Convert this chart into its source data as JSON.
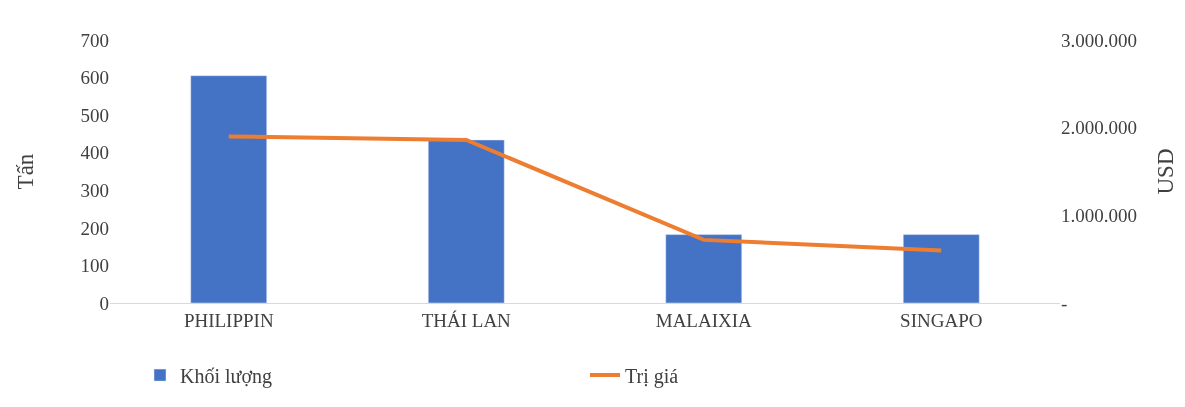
{
  "chart_data": {
    "type": "bar",
    "categories": [
      "PHILIPPIN",
      "THÁI LAN",
      "MALAIXIA",
      "SINGAPO"
    ],
    "ylabel": "Tấn",
    "y2label": "USD",
    "ylim": [
      0,
      700
    ],
    "yticks": [
      0,
      100,
      200,
      300,
      400,
      500,
      600,
      700
    ],
    "y2lim": [
      0,
      3000000
    ],
    "y2ticks": [
      {
        "value": 0,
        "label": "-"
      },
      {
        "value": 1000000,
        "label": "1.000.000"
      },
      {
        "value": 2000000,
        "label": "2.000.000"
      },
      {
        "value": 3000000,
        "label": "3.000.000"
      }
    ],
    "series": [
      {
        "name": "Khối lượng",
        "color": "#4472c4",
        "values": [
          605,
          434,
          182,
          182
        ]
      },
      {
        "name": "Trị giá",
        "type": "line",
        "axis": "y2",
        "color": "#ed7d31",
        "values": [
          1900000,
          1860000,
          720000,
          600000
        ]
      }
    ],
    "legend": "bottom",
    "marker": "none",
    "line_style": "solid"
  }
}
